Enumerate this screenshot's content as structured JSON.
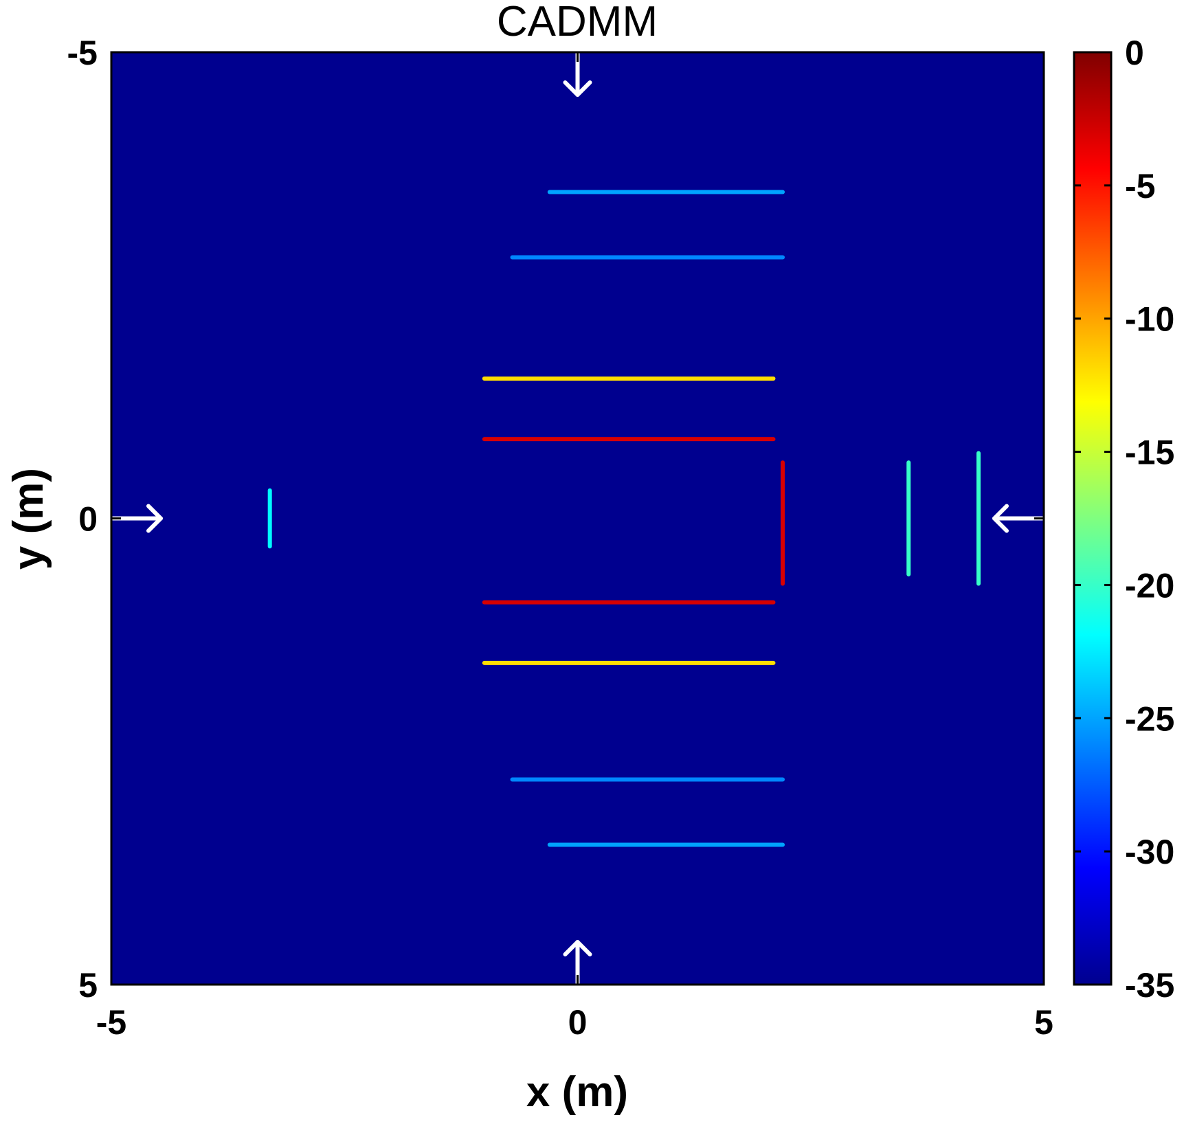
{
  "chart_data": {
    "type": "heatmap",
    "title": "CADMM",
    "xlabel": "x (m)",
    "ylabel": "y (m)",
    "xlim": [
      -5,
      5
    ],
    "ylim": [
      -5,
      5
    ],
    "y_axis_direction": "reversed (top to bottom, -5 to 5)",
    "x_ticks": [
      "-5",
      "0",
      "5"
    ],
    "y_ticks": [
      "-5",
      "0",
      "5"
    ],
    "colorbar": {
      "colormap": "jet",
      "range": [
        -35,
        0
      ],
      "ticks": [
        "0",
        "-5",
        "-10",
        "-15",
        "-20",
        "-25",
        "-30",
        "-35"
      ]
    },
    "background_level_db": -35,
    "background_color": "#00008f",
    "arrows": [
      {
        "position": "top-center",
        "direction": "down"
      },
      {
        "position": "bottom-center",
        "direction": "up"
      },
      {
        "position": "left-center",
        "direction": "right"
      },
      {
        "position": "right-center",
        "direction": "left"
      }
    ],
    "features": [
      {
        "shape": "horizontal-line",
        "y": -0.85,
        "x_range": [
          -1.0,
          2.1
        ],
        "level_db": -3
      },
      {
        "shape": "horizontal-line",
        "y": 0.9,
        "x_range": [
          -1.0,
          2.1
        ],
        "level_db": -3
      },
      {
        "shape": "vertical-line",
        "x": 2.2,
        "y_range": [
          -0.6,
          0.7
        ],
        "level_db": -3
      },
      {
        "shape": "horizontal-line",
        "y": -1.5,
        "x_range": [
          -1.0,
          2.1
        ],
        "level_db": -12
      },
      {
        "shape": "horizontal-line",
        "y": 1.55,
        "x_range": [
          -1.0,
          2.1
        ],
        "level_db": -12
      },
      {
        "shape": "horizontal-line",
        "y": -3.5,
        "x_range": [
          -0.3,
          2.2
        ],
        "level_db": -25
      },
      {
        "shape": "horizontal-line",
        "y": 3.5,
        "x_range": [
          -0.3,
          2.2
        ],
        "level_db": -25
      },
      {
        "shape": "horizontal-line",
        "y": -2.8,
        "x_range": [
          -0.7,
          2.2
        ],
        "level_db": -26
      },
      {
        "shape": "horizontal-line",
        "y": 2.8,
        "x_range": [
          -0.7,
          2.2
        ],
        "level_db": -26
      },
      {
        "shape": "vertical-line",
        "x": 3.55,
        "y_range": [
          -0.6,
          0.6
        ],
        "level_db": -20
      },
      {
        "shape": "vertical-line",
        "x": 4.3,
        "y_range": [
          -0.7,
          0.7
        ],
        "level_db": -20
      },
      {
        "shape": "vertical-line",
        "x": -3.3,
        "y_range": [
          -0.3,
          0.3
        ],
        "level_db": -22
      }
    ]
  }
}
